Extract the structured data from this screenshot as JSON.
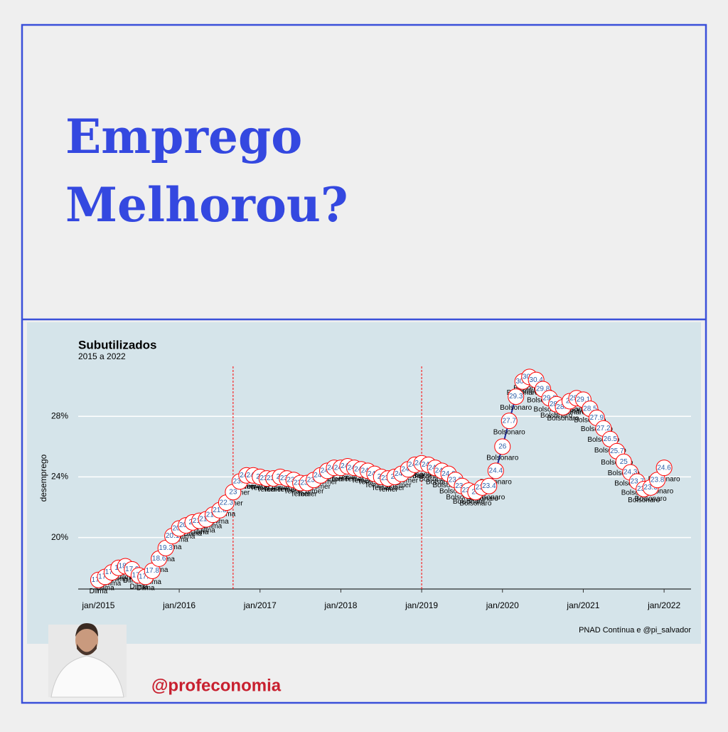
{
  "header": {
    "title_lines": [
      "Emprego",
      "Melhorou?"
    ]
  },
  "footer": {
    "handle": "@profeconomia"
  },
  "chart_data": {
    "type": "line",
    "title": "Subutilizados",
    "subtitle": "2015 a 2022",
    "ylabel": "desemprego",
    "caption": "PNAD Contínua e @pi_salvador",
    "x": [
      "2015-01",
      "2015-02",
      "2015-03",
      "2015-04",
      "2015-05",
      "2015-06",
      "2015-07",
      "2015-08",
      "2015-09",
      "2015-10",
      "2015-11",
      "2015-12",
      "2016-01",
      "2016-02",
      "2016-03",
      "2016-04",
      "2016-05",
      "2016-06",
      "2016-07",
      "2016-08",
      "2016-09",
      "2016-10",
      "2016-11",
      "2016-12",
      "2017-01",
      "2017-02",
      "2017-03",
      "2017-04",
      "2017-05",
      "2017-06",
      "2017-07",
      "2017-08",
      "2017-09",
      "2017-10",
      "2017-11",
      "2017-12",
      "2018-01",
      "2018-02",
      "2018-03",
      "2018-04",
      "2018-05",
      "2018-06",
      "2018-07",
      "2018-08",
      "2018-09",
      "2018-10",
      "2018-11",
      "2018-12",
      "2019-01",
      "2019-02",
      "2019-03",
      "2019-04",
      "2019-05",
      "2019-06",
      "2019-07",
      "2019-08",
      "2019-09",
      "2019-10",
      "2019-11",
      "2019-12",
      "2020-01",
      "2020-02",
      "2020-03",
      "2020-04",
      "2020-05",
      "2020-06",
      "2020-07",
      "2020-08",
      "2020-09",
      "2020-10",
      "2020-11",
      "2020-12",
      "2021-01",
      "2021-02",
      "2021-03",
      "2021-04",
      "2021-05",
      "2021-06",
      "2021-07",
      "2021-08",
      "2021-09",
      "2021-10",
      "2021-11",
      "2021-12",
      "2022-01"
    ],
    "values": [
      17.2,
      17.4,
      17.7,
      18.0,
      18.1,
      17.9,
      17.5,
      17.4,
      17.8,
      18.6,
      19.3,
      20.1,
      20.6,
      20.8,
      21.0,
      21.1,
      21.2,
      21.5,
      21.8,
      22.3,
      23.0,
      23.7,
      24.1,
      24.1,
      24.0,
      23.9,
      23.9,
      24.0,
      23.9,
      23.8,
      23.6,
      23.6,
      23.8,
      24.1,
      24.4,
      24.6,
      24.6,
      24.7,
      24.6,
      24.5,
      24.4,
      24.2,
      24.0,
      23.9,
      24.0,
      24.2,
      24.5,
      24.8,
      24.9,
      24.8,
      24.6,
      24.4,
      24.2,
      23.8,
      23.4,
      23.1,
      23.0,
      23.3,
      23.4,
      24.4,
      26.0,
      27.7,
      29.3,
      30.3,
      30.6,
      30.4,
      29.8,
      29.2,
      28.8,
      28.6,
      29.0,
      29.2,
      29.1,
      28.5,
      27.9,
      27.2,
      26.5,
      25.7,
      25.0,
      24.3,
      23.7,
      23.2,
      23.3,
      23.8,
      24.6
    ],
    "point_labels": [
      "Dilma",
      "Dilma",
      "Dilma",
      "Dilma",
      "Dilma",
      "Dilma",
      "Dilma",
      "Dilma",
      "Dilma",
      "Dilma",
      "Dilma",
      "Dilma",
      "Dilma",
      "Dilma",
      "Dilma",
      "Dilma",
      "Dilma",
      "Dilma",
      "Dilma",
      "Dilma",
      "Temer",
      "Temer",
      "Temer",
      "Temer",
      "Temer",
      "Temer",
      "Temer",
      "Temer",
      "Temer",
      "Temer",
      "Temer",
      "Temer",
      "Temer",
      "Temer",
      "Temer",
      "Temer",
      "Temer",
      "Temer",
      "Temer",
      "Temer",
      "Temer",
      "Temer",
      "Temer",
      "Temer",
      "Temer",
      "Temer",
      "Temer",
      "Temer",
      "Bolsonaro",
      "Bolsonaro",
      "Bolsonaro",
      "Bolsonaro",
      "Bolsonaro",
      "Bolsonaro",
      "Bolsonaro",
      "Bolsonaro",
      "Bolsonaro",
      "Bolsonaro",
      "Bolsonaro",
      "Bolsonaro",
      "Bolsonaro",
      "Bolsonaro",
      "Bolsonaro",
      "Bolsonaro",
      "Bolsonaro",
      "Bolsonaro",
      "Bolsonaro",
      "Bolsonaro",
      "Bolsonaro",
      "Bolsonaro",
      "Bolsonaro",
      "Bolsonaro",
      "Bolsonaro",
      "Bolsonaro",
      "Bolsonaro",
      "Bolsonaro",
      "Bolsonaro",
      "Bolsonaro",
      "Bolsonaro",
      "Bolsonaro",
      "Bolsonaro",
      "Bolsonaro",
      "Bolsonaro",
      "Bolsonaro",
      "Bolsonaro"
    ],
    "color": "#1f2a9e",
    "marker_edge_color": "#ff0000",
    "event_lines": [
      "2016-09",
      "2019-01"
    ],
    "event_line_color": "#ff0000",
    "xlim": [
      "2014-10",
      "2022-05"
    ],
    "xticks": [
      {
        "value": "2015-01",
        "label": "jan/2015"
      },
      {
        "value": "2016-01",
        "label": "jan/2016"
      },
      {
        "value": "2017-01",
        "label": "jan/2017"
      },
      {
        "value": "2018-01",
        "label": "jan/2018"
      },
      {
        "value": "2019-01",
        "label": "jan/2019"
      },
      {
        "value": "2020-01",
        "label": "jan/2020"
      },
      {
        "value": "2021-01",
        "label": "jan/2021"
      },
      {
        "value": "2022-01",
        "label": "jan/2022"
      }
    ],
    "ylim": [
      16.6,
      31.3
    ],
    "yticks": [
      {
        "value": 20,
        "label": "20%"
      },
      {
        "value": 24,
        "label": "24%"
      },
      {
        "value": 28,
        "label": "28%"
      }
    ],
    "grid": true
  }
}
